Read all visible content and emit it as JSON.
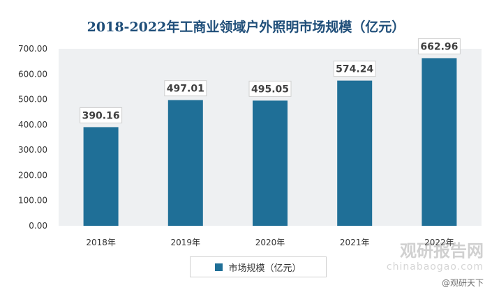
{
  "chart_data": {
    "type": "bar",
    "title": "2018-2022年工商业领域户外照明市场规模（亿元）",
    "categories": [
      "2018年",
      "2019年",
      "2020年",
      "2021年",
      "2022年"
    ],
    "series": [
      {
        "name": "市场规模（亿元）",
        "values": [
          390.16,
          497.01,
          495.05,
          574.24,
          662.96
        ]
      }
    ],
    "data_labels": [
      "390.16",
      "497.01",
      "495.05",
      "574.24",
      "662.96"
    ],
    "y_ticks": [
      "0.00",
      "100.00",
      "200.00",
      "300.00",
      "400.00",
      "500.00",
      "600.00",
      "700.00"
    ],
    "ylim": [
      0,
      700
    ],
    "xlabel": "",
    "ylabel": "",
    "grid": false,
    "legend_position": "bottom",
    "bar_color": "#1f6f97"
  },
  "watermark": {
    "logo": "观研报告网",
    "url": "chinabaogao.com",
    "source": "@观研天下"
  }
}
